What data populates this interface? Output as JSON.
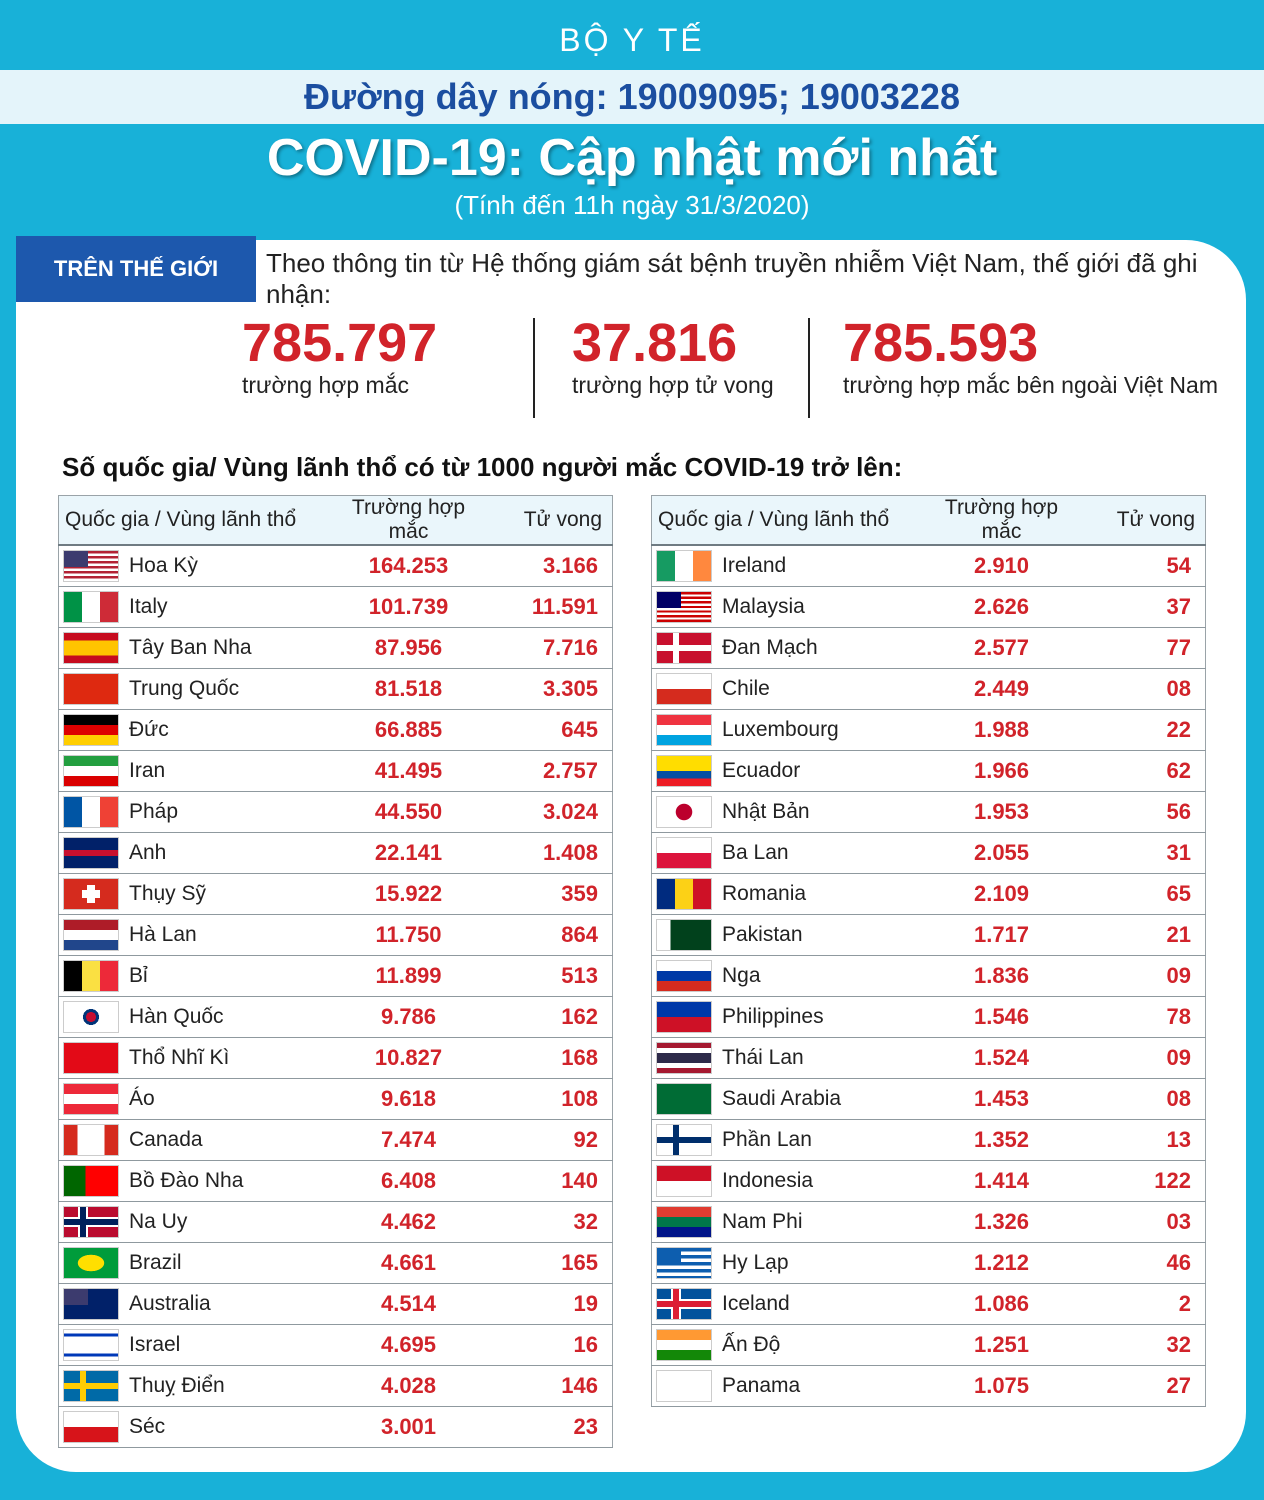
{
  "header": {
    "org": "BỘ Y TẾ",
    "hotline": "Đường dây nóng: 19009095; 19003228",
    "title": "COVID-19: Cập nhật mới nhất",
    "subtitle": "(Tính đến 11h ngày 31/3/2020)"
  },
  "world": {
    "tag": "TRÊN THẾ GIỚI",
    "intro": "Theo thông tin từ Hệ thống giám sát bệnh truyền nhiễm Việt Nam, thế giới đã ghi nhận:",
    "stats": [
      {
        "value": "785.797",
        "label": "trường hợp mắc"
      },
      {
        "value": "37.816",
        "label": "trường hợp tử vong"
      },
      {
        "value": "785.593",
        "label": "trường hợp  mắc bên ngoài Việt Nam"
      }
    ]
  },
  "table_heading": "Số quốc gia/ Vùng lãnh thổ có từ 1000 người  mắc COVID-19 trở lên:",
  "columns": {
    "country": "Quốc gia / Vùng lãnh thổ",
    "cases": "Trường hợp mắc",
    "deaths": "Tử vong"
  },
  "colors": {
    "background": "#18b1d8",
    "accent_red": "#d1232a",
    "accent_blue": "#1d58ad"
  },
  "left_rows": [
    {
      "name": "Hoa Kỳ",
      "cases": "164.253",
      "deaths": "3.166",
      "flag": "us-flag-icon"
    },
    {
      "name": "Italy",
      "cases": "101.739",
      "deaths": "11.591",
      "flag": "italy-flag-icon"
    },
    {
      "name": "Tây Ban Nha",
      "cases": "87.956",
      "deaths": "7.716",
      "flag": "spain-flag-icon"
    },
    {
      "name": "Trung Quốc",
      "cases": "81.518",
      "deaths": "3.305",
      "flag": "china-flag-icon"
    },
    {
      "name": "Đức",
      "cases": "66.885",
      "deaths": "645",
      "flag": "germany-flag-icon"
    },
    {
      "name": "Iran",
      "cases": "41.495",
      "deaths": "2.757",
      "flag": "iran-flag-icon"
    },
    {
      "name": "Pháp",
      "cases": "44.550",
      "deaths": "3.024",
      "flag": "france-flag-icon"
    },
    {
      "name": "Anh",
      "cases": "22.141",
      "deaths": "1.408",
      "flag": "uk-flag-icon"
    },
    {
      "name": "Thụy Sỹ",
      "cases": "15.922",
      "deaths": "359",
      "flag": "switzerland-flag-icon"
    },
    {
      "name": "Hà Lan",
      "cases": "11.750",
      "deaths": "864",
      "flag": "netherlands-flag-icon"
    },
    {
      "name": "Bỉ",
      "cases": "11.899",
      "deaths": "513",
      "flag": "belgium-flag-icon"
    },
    {
      "name": "Hàn Quốc",
      "cases": "9.786",
      "deaths": "162",
      "flag": "south-korea-flag-icon"
    },
    {
      "name": "Thổ Nhĩ Kì",
      "cases": "10.827",
      "deaths": "168",
      "flag": "turkey-flag-icon"
    },
    {
      "name": "Áo",
      "cases": "9.618",
      "deaths": "108",
      "flag": "austria-flag-icon"
    },
    {
      "name": "Canada",
      "cases": "7.474",
      "deaths": "92",
      "flag": "canada-flag-icon"
    },
    {
      "name": "Bồ Đào Nha",
      "cases": "6.408",
      "deaths": "140",
      "flag": "portugal-flag-icon"
    },
    {
      "name": "Na Uy",
      "cases": "4.462",
      "deaths": "32",
      "flag": "norway-flag-icon"
    },
    {
      "name": "Brazil",
      "cases": "4.661",
      "deaths": "165",
      "flag": "brazil-flag-icon"
    },
    {
      "name": "Australia",
      "cases": "4.514",
      "deaths": "19",
      "flag": "australia-flag-icon"
    },
    {
      "name": "Israel",
      "cases": "4.695",
      "deaths": "16",
      "flag": "israel-flag-icon"
    },
    {
      "name": "Thuỵ Điển",
      "cases": "4.028",
      "deaths": "146",
      "flag": "sweden-flag-icon"
    },
    {
      "name": "Séc",
      "cases": "3.001",
      "deaths": "23",
      "flag": "czech-flag-icon"
    }
  ],
  "right_rows": [
    {
      "name": "Ireland",
      "cases": "2.910",
      "deaths": "54",
      "flag": "ireland-flag-icon"
    },
    {
      "name": "Malaysia",
      "cases": "2.626",
      "deaths": "37",
      "flag": "malaysia-flag-icon"
    },
    {
      "name": "Đan Mạch",
      "cases": "2.577",
      "deaths": "77",
      "flag": "denmark-flag-icon"
    },
    {
      "name": "Chile",
      "cases": "2.449",
      "deaths": "08",
      "flag": "chile-flag-icon"
    },
    {
      "name": "Luxembourg",
      "cases": "1.988",
      "deaths": "22",
      "flag": "luxembourg-flag-icon"
    },
    {
      "name": "Ecuador",
      "cases": "1.966",
      "deaths": "62",
      "flag": "ecuador-flag-icon"
    },
    {
      "name": "Nhật Bản",
      "cases": "1.953",
      "deaths": "56",
      "flag": "japan-flag-icon"
    },
    {
      "name": "Ba Lan",
      "cases": "2.055",
      "deaths": "31",
      "flag": "poland-flag-icon"
    },
    {
      "name": "Romania",
      "cases": "2.109",
      "deaths": "65",
      "flag": "romania-flag-icon"
    },
    {
      "name": "Pakistan",
      "cases": "1.717",
      "deaths": "21",
      "flag": "pakistan-flag-icon"
    },
    {
      "name": "Nga",
      "cases": "1.836",
      "deaths": "09",
      "flag": "russia-flag-icon"
    },
    {
      "name": "Philippines",
      "cases": "1.546",
      "deaths": "78",
      "flag": "philippines-flag-icon"
    },
    {
      "name": "Thái Lan",
      "cases": "1.524",
      "deaths": "09",
      "flag": "thailand-flag-icon"
    },
    {
      "name": "Saudi Arabia",
      "cases": "1.453",
      "deaths": "08",
      "flag": "saudi-arabia-flag-icon"
    },
    {
      "name": "Phần Lan",
      "cases": "1.352",
      "deaths": "13",
      "flag": "finland-flag-icon"
    },
    {
      "name": "Indonesia",
      "cases": "1.414",
      "deaths": "122",
      "flag": "indonesia-flag-icon"
    },
    {
      "name": "Nam Phi",
      "cases": "1.326",
      "deaths": "03",
      "flag": "south-africa-flag-icon"
    },
    {
      "name": "Hy Lạp",
      "cases": "1.212",
      "deaths": "46",
      "flag": "greece-flag-icon"
    },
    {
      "name": "Iceland",
      "cases": "1.086",
      "deaths": "2",
      "flag": "iceland-flag-icon"
    },
    {
      "name": "Ấn Độ",
      "cases": "1.251",
      "deaths": "32",
      "flag": "india-flag-icon"
    },
    {
      "name": "Panama",
      "cases": "1.075",
      "deaths": "27",
      "flag": "panama-flag-icon"
    }
  ]
}
